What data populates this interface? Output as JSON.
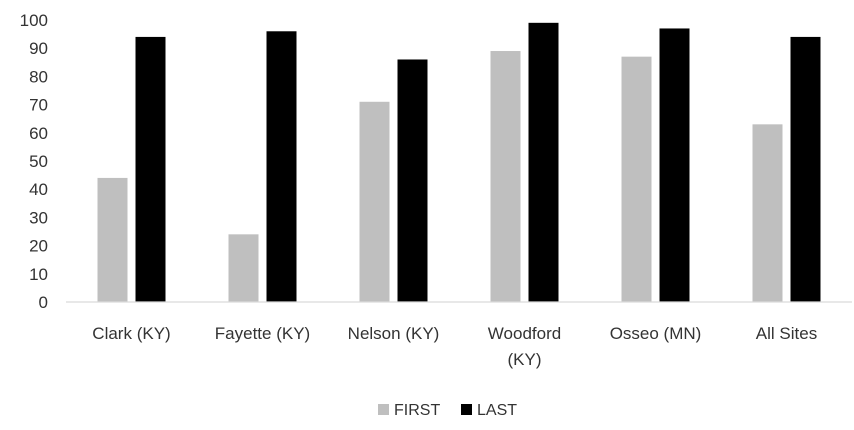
{
  "chart_data": {
    "type": "bar",
    "categories": [
      "Clark (KY)",
      "Fayette (KY)",
      "Nelson (KY)",
      "Woodford (KY)",
      "Osseo (MN)",
      "All Sites"
    ],
    "category_lines": [
      [
        "Clark (KY)"
      ],
      [
        "Fayette (KY)"
      ],
      [
        "Nelson (KY)"
      ],
      [
        "Woodford",
        "(KY)"
      ],
      [
        "Osseo (MN)"
      ],
      [
        "All Sites"
      ]
    ],
    "series": [
      {
        "name": "FIRST",
        "color": "#bfbfbf",
        "values": [
          44,
          24,
          71,
          89,
          87,
          63
        ]
      },
      {
        "name": "LAST",
        "color": "#000000",
        "values": [
          94,
          96,
          86,
          99,
          97,
          94
        ]
      }
    ],
    "ylim": [
      0,
      100
    ],
    "yticks": [
      "0",
      "10",
      "20",
      "30",
      "40",
      "50",
      "60",
      "70",
      "80",
      "90",
      "100"
    ],
    "title": "",
    "xlabel": "",
    "ylabel": "",
    "grid": false,
    "legend_position": "bottom"
  }
}
